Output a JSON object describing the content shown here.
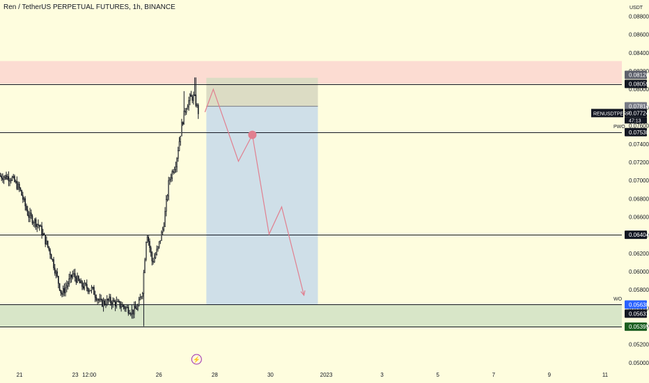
{
  "title": "Ren / TetherUS PERPETUAL FUTURES, 1h, BINANCE",
  "chart_data": {
    "type": "candlestick",
    "currency": "USDT",
    "symbol": "RENUSDTPERP",
    "countdown": "47:13",
    "ylim": [
      0.0493,
      0.0898
    ],
    "y_ticks": [
      "0.08800",
      "0.08600",
      "0.08400",
      "0.08200",
      "0.08000",
      "0.07800",
      "0.07600",
      "0.07400",
      "0.07200",
      "0.07000",
      "0.06800",
      "0.06600",
      "0.06400",
      "0.06200",
      "0.06000",
      "0.05800",
      "0.05600",
      "0.05400",
      "0.05200",
      "0.05000"
    ],
    "x_ticks": [
      {
        "label": "21",
        "t": 0
      },
      {
        "label": "23",
        "t": 2
      },
      {
        "label": "12:00",
        "t": 2.5
      },
      {
        "label": "26",
        "t": 5
      },
      {
        "label": "28",
        "t": 7
      },
      {
        "label": "30",
        "t": 9
      },
      {
        "label": "2023",
        "t": 11
      },
      {
        "label": "3",
        "t": 13
      },
      {
        "label": "5",
        "t": 15
      },
      {
        "label": "7",
        "t": 17
      },
      {
        "label": "9",
        "t": 19
      },
      {
        "label": "11",
        "t": 21
      }
    ],
    "x_start": -0.7,
    "x_end": 21.6,
    "zones": [
      {
        "name": "supply-zone",
        "y_top": 0.0831,
        "y_bottom": 0.08059,
        "color": "#fcdcd2"
      },
      {
        "name": "demand-zone",
        "y_top": 0.05638,
        "y_bottom": 0.05395,
        "color": "#d8e6c8"
      }
    ],
    "hlines": [
      {
        "name": "resistance-line",
        "y": 0.08059
      },
      {
        "name": "pwo-line",
        "y": 0.0753
      },
      {
        "name": "target-line",
        "y": 0.06404
      },
      {
        "name": "wo-line",
        "y": 0.05638
      },
      {
        "name": "demand-bottom-line",
        "y": 0.05395
      }
    ],
    "position": {
      "t_start": 6.7,
      "t_end": 10.7,
      "stop": 0.08126,
      "entry": 0.07814,
      "target": 0.05638,
      "risk_color": "#dcdcc4",
      "reward_color": "#cfdfe8"
    },
    "projection": {
      "points": [
        [
          6.65,
          0.0775
        ],
        [
          6.95,
          0.08
        ],
        [
          7.85,
          0.0721
        ],
        [
          8.35,
          0.075
        ],
        [
          8.95,
          0.0641
        ],
        [
          9.4,
          0.0671
        ],
        [
          10.2,
          0.0574
        ]
      ],
      "color": "#e17f8f"
    },
    "marker": {
      "t": 8.35,
      "y": 0.075,
      "color": "#e17f8f"
    },
    "event_icon": {
      "t": 6.35,
      "glyph": "⚡",
      "color": "#9c27b0"
    },
    "price_labels": [
      {
        "text": "0.08126",
        "y": 0.08126,
        "bg": "#5d606b",
        "color": "#ffffff"
      },
      {
        "text": "0.08059",
        "y": 0.08059,
        "bg": "#131722",
        "color": "#ffffff"
      },
      {
        "text": "0.07814",
        "y": 0.07814,
        "bg": "#787b86",
        "color": "#ffffff"
      },
      {
        "text": "0.07724",
        "y": 0.07724,
        "bg": "#131722",
        "color": "#ffffff"
      },
      {
        "text": "0.07530",
        "y": 0.0753,
        "bg": "#131722",
        "color": "#ffffff"
      },
      {
        "text": "0.06404",
        "y": 0.06404,
        "bg": "#131722",
        "color": "#ffffff"
      },
      {
        "text": "0.05638",
        "y": 0.05638,
        "bg": "#2962ff",
        "color": "#ffffff"
      },
      {
        "text": "0.05631",
        "y": 0.05631,
        "bg": "#131722",
        "color": "#ffffff"
      },
      {
        "text": "0.05395",
        "y": 0.05395,
        "bg": "#1b5e20",
        "color": "#ffffff"
      }
    ],
    "line_tags": [
      {
        "text": "PWO",
        "y": 0.0753
      },
      {
        "text": "WO",
        "y": 0.05638
      }
    ],
    "candle_color": "#131722"
  }
}
